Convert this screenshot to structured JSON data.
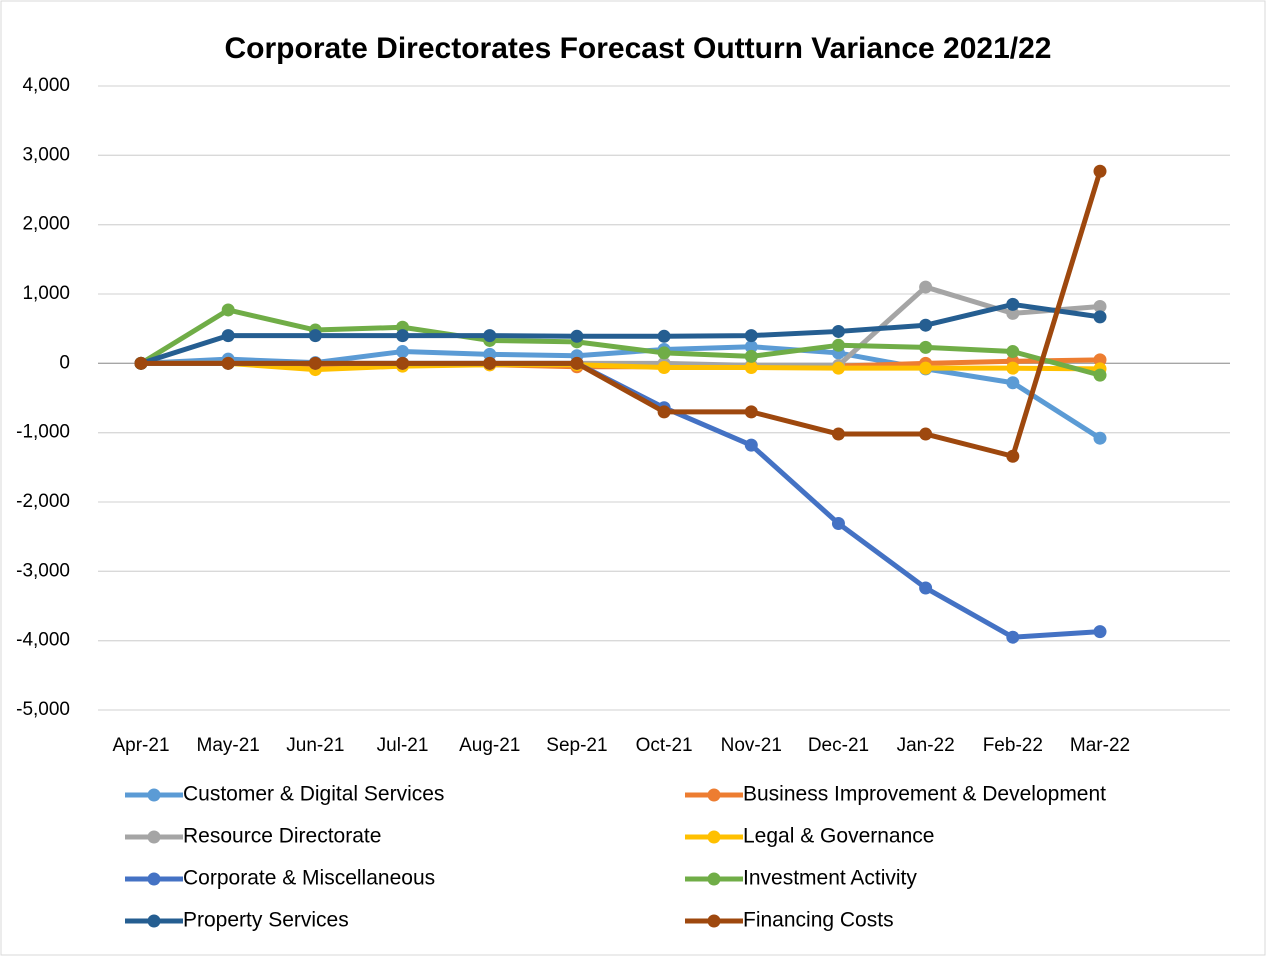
{
  "chart_data": {
    "type": "line",
    "title": "Corporate Directorates Forecast Outturn Variance 2021/22",
    "categories": [
      "Apr-21",
      "May-21",
      "Jun-21",
      "Jul-21",
      "Aug-21",
      "Sep-21",
      "Oct-21",
      "Nov-21",
      "Dec-21",
      "Jan-22",
      "Feb-22",
      "Mar-22"
    ],
    "ylim": [
      -5000,
      4000
    ],
    "yticks": [
      {
        "value": -5000,
        "label": "-5,000"
      },
      {
        "value": -4000,
        "label": "-4,000"
      },
      {
        "value": -3000,
        "label": "-3,000"
      },
      {
        "value": -2000,
        "label": "-2,000"
      },
      {
        "value": -1000,
        "label": "-1,000"
      },
      0,
      {
        "value": 1000,
        "label": "1,000"
      },
      {
        "value": 2000,
        "label": "2,000"
      },
      {
        "value": 3000,
        "label": "3,000"
      },
      {
        "value": 4000,
        "label": "4,000"
      }
    ],
    "grid": true,
    "legend": "bottom",
    "series": [
      {
        "name": "Customer & Digital Services",
        "color": "#5b9bd5",
        "values": [
          0,
          60,
          10,
          170,
          130,
          110,
          200,
          240,
          150,
          -80,
          -280,
          -1080
        ]
      },
      {
        "name": "Business Improvement & Development",
        "color": "#ed7d31",
        "values": [
          0,
          0,
          -20,
          -20,
          -20,
          -50,
          -50,
          -40,
          -40,
          0,
          30,
          50
        ]
      },
      {
        "name": "Resource Directorate",
        "color": "#a5a5a5",
        "values": [
          0,
          0,
          0,
          0,
          0,
          0,
          0,
          -30,
          -30,
          1100,
          720,
          820
        ]
      },
      {
        "name": "Legal & Governance",
        "color": "#ffc000",
        "values": [
          0,
          0,
          -90,
          -40,
          -20,
          -20,
          -60,
          -60,
          -70,
          -70,
          -70,
          -80
        ]
      },
      {
        "name": "Corporate & Miscellaneous",
        "color": "#4472c4",
        "values": [
          0,
          0,
          0,
          0,
          0,
          0,
          -640,
          -1180,
          -2310,
          -3240,
          -3950,
          -3870
        ]
      },
      {
        "name": "Investment Activity",
        "color": "#70ad47",
        "values": [
          0,
          770,
          480,
          520,
          330,
          310,
          150,
          100,
          260,
          230,
          170,
          -170
        ]
      },
      {
        "name": "Property Services",
        "color": "#255e91",
        "values": [
          0,
          400,
          400,
          400,
          400,
          390,
          390,
          400,
          460,
          550,
          850,
          670
        ]
      },
      {
        "name": "Financing Costs",
        "color": "#9e480e",
        "values": [
          0,
          0,
          0,
          0,
          0,
          0,
          -700,
          -700,
          -1020,
          -1020,
          -1340,
          2770
        ]
      }
    ]
  }
}
